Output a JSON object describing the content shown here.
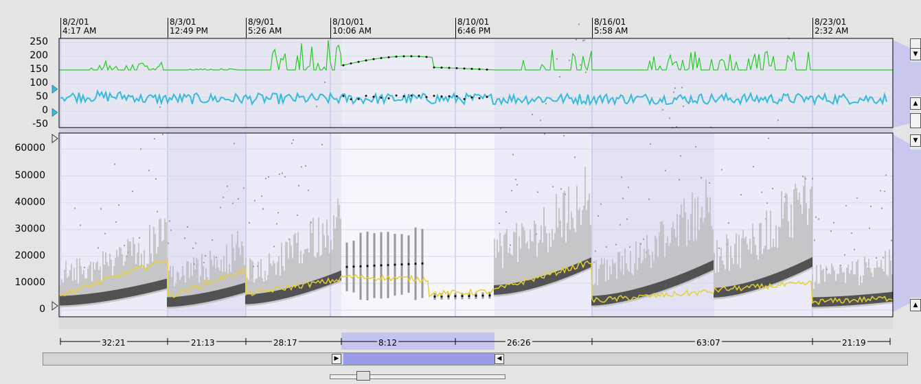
{
  "time_markers": [
    {
      "date": "8/2/01",
      "time": "4:17 AM"
    },
    {
      "date": "8/3/01",
      "time": "12:49 PM"
    },
    {
      "date": "8/9/01",
      "time": "5:26 AM"
    },
    {
      "date": "8/10/01",
      "time": "10:06 AM"
    },
    {
      "date": "8/10/01",
      "time": "6:46 PM"
    },
    {
      "date": "8/16/01",
      "time": "5:58 AM"
    },
    {
      "date": "8/23/01",
      "time": "2:32 AM"
    }
  ],
  "durations": [
    "32:21",
    "21:13",
    "28:17",
    "8:12",
    "26:26",
    "63:07",
    "21:19"
  ],
  "chart_data": [
    {
      "type": "line",
      "axis_ticks": [
        "250",
        "200",
        "150",
        "100",
        "50",
        "0",
        "-50"
      ],
      "ylim": [
        -60,
        265
      ],
      "series": [
        {
          "color": "#22cc22",
          "segments": [
            {
              "period": 0,
              "level": 150,
              "burst_level": 185
            },
            {
              "period": 1,
              "level": 150,
              "burst_level": 155
            },
            {
              "period": 2,
              "level": 150,
              "burst_level": 260
            },
            {
              "period": 3,
              "level": 150,
              "burst_level": 200
            },
            {
              "period": 4,
              "level": 150,
              "burst_level": 225
            },
            {
              "period": 5,
              "level": 150,
              "burst_level": 220
            },
            {
              "period": 6,
              "level": 150,
              "burst_level": 150
            }
          ]
        },
        {
          "color": "#33bbdd",
          "mean_level": 45,
          "range": [
            20,
            80
          ]
        }
      ]
    },
    {
      "type": "scatter",
      "axis_ticks": [
        "60000",
        "50000",
        "40000",
        "30000",
        "20000",
        "10000",
        "0"
      ],
      "ylim": [
        -2500,
        66000
      ],
      "mean_line_color": "#e6d02e",
      "periods": [
        {
          "mean_start": 5500,
          "mean_end": 19000,
          "density_start": 3500,
          "density_end": 10000
        },
        {
          "mean_start": 5000,
          "mean_end": 15000,
          "density_start": 3000,
          "density_end": 8500
        },
        {
          "mean_start": 6000,
          "mean_end": 11500,
          "density_start": 4000,
          "density_end": 13000
        },
        {
          "mean_start": 12500,
          "mean_end": 11500,
          "density_start": 16000,
          "density_end": 17500
        },
        {
          "mean_start": 6000,
          "mean_end": 7000,
          "density_start": 5000,
          "density_end": 5500
        },
        {
          "mean_start": 7500,
          "mean_end": 18000,
          "density_start": 7500,
          "density_end": 18000
        },
        {
          "mean_start": 3500,
          "mean_end": 10000,
          "density_start": 3500,
          "density_end": 17000
        },
        {
          "mean_start": 3000,
          "mean_end": 4500,
          "density_start": 3000,
          "density_end": 5000
        }
      ]
    }
  ]
}
